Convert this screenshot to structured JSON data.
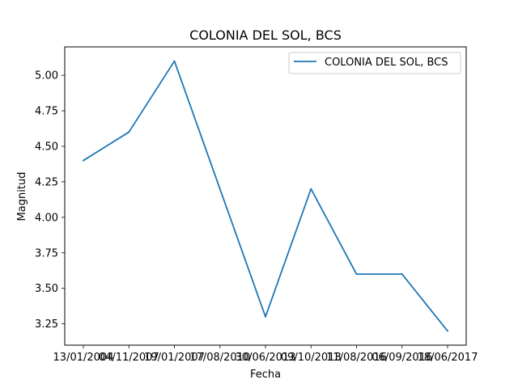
{
  "chart_data": {
    "type": "line",
    "title": "COLONIA DEL SOL, BCS",
    "xlabel": "Fecha",
    "ylabel": "Magnitud",
    "categories": [
      "13/01/2004",
      "04/11/2007",
      "19/01/2007",
      "17/08/2010",
      "30/06/2013",
      "09/10/2013",
      "11/08/2016",
      "06/09/2016",
      "18/06/2017"
    ],
    "series": [
      {
        "name": "COLONIA DEL SOL, BCS",
        "values": [
          4.4,
          4.6,
          5.1,
          4.2,
          3.3,
          4.2,
          3.6,
          3.6,
          3.2
        ],
        "color": "#1f77b4"
      }
    ],
    "ylim": [
      3.1,
      5.2
    ],
    "yticks": [
      3.25,
      3.5,
      3.75,
      4.0,
      4.25,
      4.5,
      4.75,
      5.0
    ],
    "ytick_labels": [
      "3.25",
      "3.50",
      "3.75",
      "4.00",
      "4.25",
      "4.50",
      "4.75",
      "5.00"
    ],
    "grid": false,
    "legend_position": "top-right"
  }
}
